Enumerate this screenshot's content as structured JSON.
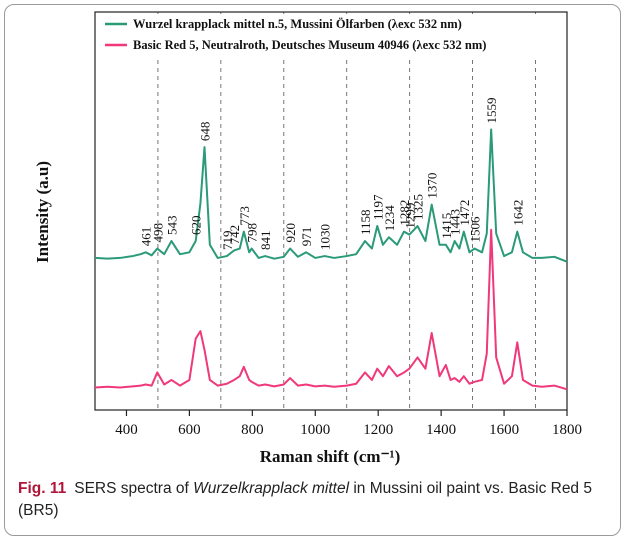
{
  "chart_data": {
    "type": "line",
    "x_label": "Raman shift (cm⁻¹)",
    "y_label": "Intensity (a.u)",
    "x": [
      300,
      340,
      380,
      420,
      445,
      461,
      480,
      498,
      520,
      543,
      570,
      600,
      620,
      635,
      648,
      665,
      690,
      719,
      742,
      760,
      773,
      790,
      798,
      820,
      841,
      870,
      900,
      920,
      945,
      971,
      1000,
      1030,
      1060,
      1100,
      1130,
      1158,
      1180,
      1197,
      1215,
      1234,
      1260,
      1282,
      1299,
      1325,
      1350,
      1370,
      1395,
      1415,
      1430,
      1443,
      1458,
      1472,
      1490,
      1506,
      1530,
      1545,
      1559,
      1575,
      1600,
      1625,
      1642,
      1660,
      1690,
      1720,
      1760,
      1800
    ],
    "series": [
      {
        "name": "Wurzel krapplack mittel n.5, Mussini Ölfarben (λexc 532 nm)",
        "color": "#2a9a78",
        "values": [
          40.5,
          40.3,
          40.5,
          41,
          41.5,
          42,
          41.2,
          43,
          41.5,
          45,
          41.5,
          42,
          45,
          55,
          70,
          44,
          40.5,
          41,
          42.5,
          43,
          47.5,
          42,
          43,
          40.5,
          41,
          40.3,
          40.8,
          43,
          40.8,
          42,
          40.5,
          41,
          40.5,
          41,
          41.5,
          45,
          43,
          49,
          44,
          46,
          44,
          47.5,
          46.7,
          49,
          45,
          54.7,
          44,
          44,
          42,
          45,
          43,
          47.5,
          42,
          43,
          42,
          47,
          74.7,
          47,
          41,
          42,
          47.5,
          42,
          40.5,
          40.5,
          40.8,
          39.5
        ]
      },
      {
        "name": "Basic Red 5, Neutralroth, Deutsches Museum 40946 (λexc 532 nm)",
        "color": "#f0387a",
        "values": [
          6,
          6.2,
          6,
          6.3,
          6.5,
          6.8,
          6.5,
          10,
          6.8,
          8,
          6.5,
          8,
          19,
          21,
          16,
          8,
          6.5,
          7,
          8,
          9,
          11.5,
          8,
          7.5,
          6.5,
          6.8,
          6.3,
          6.8,
          8.5,
          6.5,
          6.8,
          6.3,
          6.5,
          6.2,
          6.5,
          7,
          10,
          8,
          11,
          9,
          11.7,
          9,
          10,
          11,
          14,
          11,
          20.5,
          9,
          12,
          8,
          8.5,
          7.5,
          9,
          7,
          7.5,
          8,
          15,
          48,
          14,
          7,
          9,
          18,
          8,
          6.5,
          6.2,
          6.5,
          5.5
        ]
      }
    ],
    "peak_labels": [
      461,
      498,
      543,
      620,
      648,
      719,
      742,
      773,
      798,
      841,
      920,
      971,
      1030,
      1158,
      1197,
      1234,
      1282,
      1299,
      1325,
      1370,
      1415,
      1443,
      1472,
      1506,
      1559,
      1642
    ],
    "xlim": [
      300,
      1800
    ],
    "xticks": [
      400,
      600,
      800,
      1000,
      1200,
      1400,
      1600,
      1800
    ],
    "ylim": [
      0,
      106
    ],
    "dashed_lines_x": [
      500,
      700,
      900,
      1100,
      1300,
      1500,
      1700
    ],
    "legend": "upper left"
  },
  "caption": {
    "label": "Fig. 11",
    "before": "SERS spectra of ",
    "italic": "Wurzelkrapplack mittel",
    "after": " in Mussini oil paint vs. Basic Red 5 (BR5)"
  }
}
